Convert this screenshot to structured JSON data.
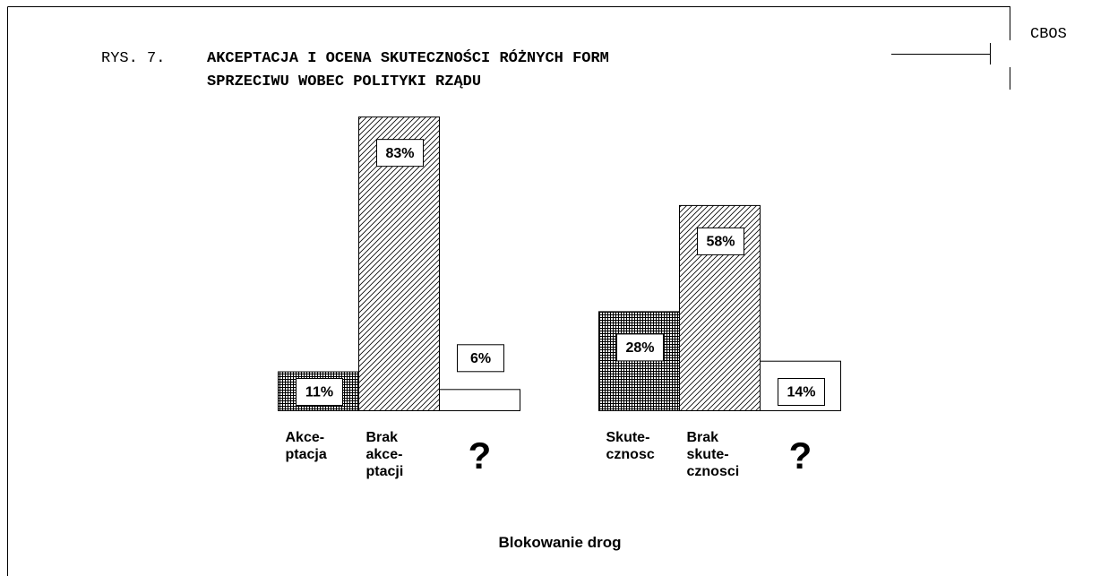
{
  "header": {
    "org": "CBOS"
  },
  "chart_data": {
    "type": "bar",
    "figure_label": "RYS. 7.",
    "title": [
      "AKCEPTACJA I OCENA SKUTECZNOŚCI RÓŻNYCH FORM",
      "SPRZECIWU WOBEC POLITYKI RZĄDU"
    ],
    "xlabel": "Blokowanie drog",
    "ylim": [
      0,
      100
    ],
    "fills": [
      "crosshatch",
      "diagonal",
      "none"
    ],
    "groups": [
      {
        "categories": [
          "Akce-\nptacja",
          "Brak\nakce-\nptacji",
          "?"
        ],
        "values": [
          11,
          83,
          6
        ],
        "value_labels": [
          "11%",
          "83%",
          "6%"
        ]
      },
      {
        "categories": [
          "Skute-\ncznosc",
          "Brak\nskute-\ncznosci",
          "?"
        ],
        "values": [
          28,
          58,
          14
        ],
        "value_labels": [
          "28%",
          "58%",
          "14%"
        ]
      }
    ]
  }
}
